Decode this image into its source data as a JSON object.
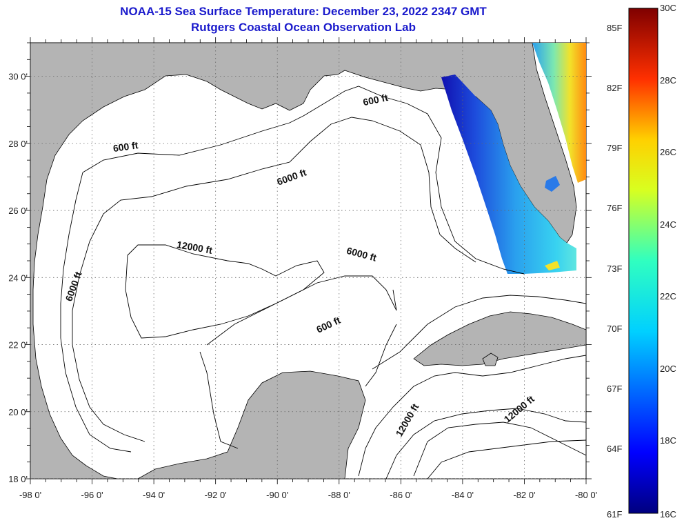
{
  "title": {
    "line1": "NOAA-15 Sea Surface Temperature:  December 23, 2022 2347 GMT",
    "line2": "Rutgers Coastal Ocean Observation Lab"
  },
  "map": {
    "lon_range": [
      -98,
      -80
    ],
    "lat_range": [
      18,
      31
    ],
    "lon_ticks": [
      "-98 0'",
      "-96 0'",
      "-94 0'",
      "-92 0'",
      "-90 0'",
      "-88 0'",
      "-86 0'",
      "-84 0'",
      "-82 0'",
      "-80 0'"
    ],
    "lat_ticks": [
      "18 0'",
      "20 0'",
      "22 0'",
      "24 0'",
      "26 0'",
      "28 0'",
      "30 0'"
    ],
    "land_color": "#b4b4b4",
    "water_color": "#ffffff",
    "contour_labels": [
      {
        "text": "600 ft",
        "lon": -94.9,
        "lat": 27.8,
        "angle": -8
      },
      {
        "text": "600 ft",
        "lon": -86.8,
        "lat": 29.2,
        "angle": -12
      },
      {
        "text": "600 ft",
        "lon": -88.3,
        "lat": 22.5,
        "angle": -25
      },
      {
        "text": "6000 ft",
        "lon": -89.5,
        "lat": 26.9,
        "angle": -20
      },
      {
        "text": "6000 ft",
        "lon": -87.3,
        "lat": 24.6,
        "angle": 15
      },
      {
        "text": "6000 ft",
        "lon": -96.5,
        "lat": 23.7,
        "angle": -70
      },
      {
        "text": "12000 ft",
        "lon": -92.7,
        "lat": 24.8,
        "angle": 10
      },
      {
        "text": "12000 ft",
        "lon": -85.7,
        "lat": 19.7,
        "angle": -60
      },
      {
        "text": "12000 ft",
        "lon": -82.1,
        "lat": 20.0,
        "angle": -40
      }
    ]
  },
  "colorbar": {
    "fahrenheit": [
      "85F",
      "82F",
      "79F",
      "76F",
      "73F",
      "70F",
      "67F",
      "64F",
      "61F"
    ],
    "celsius": [
      "30C",
      "28C",
      "26C",
      "24C",
      "22C",
      "20C",
      "18C",
      "16C"
    ]
  }
}
